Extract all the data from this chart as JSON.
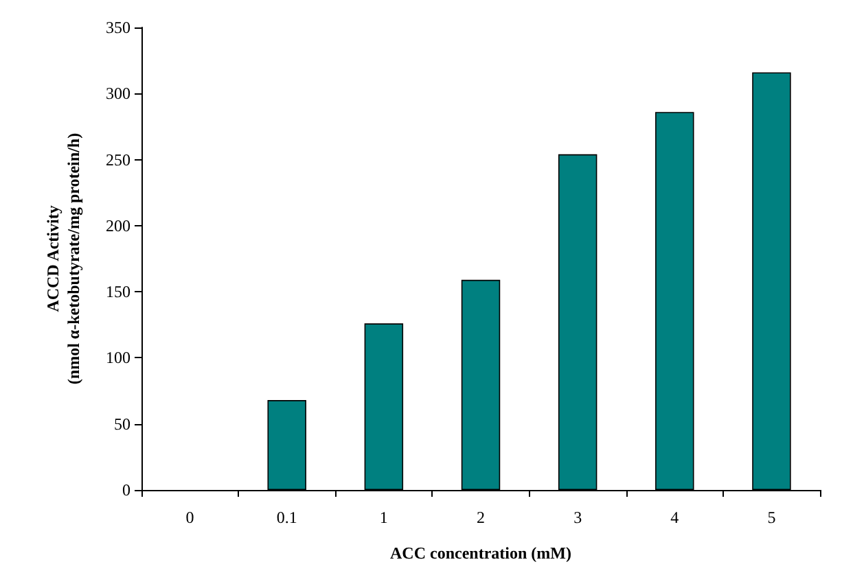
{
  "chart_data": {
    "type": "bar",
    "xlabel": "ACC concentration (mM)",
    "ylabel": "ACCD Activity\n(nmol α-ketobutyrate/mg protein/h)",
    "categories": [
      "0",
      "0.1",
      "1",
      "2",
      "3",
      "4",
      "5"
    ],
    "values": [
      0,
      68,
      126,
      159,
      254,
      286,
      316
    ],
    "color": "#008080",
    "ylim": [
      0,
      350
    ],
    "yticks": [
      0,
      50,
      100,
      150,
      200,
      250,
      300,
      350
    ],
    "grid": false
  }
}
